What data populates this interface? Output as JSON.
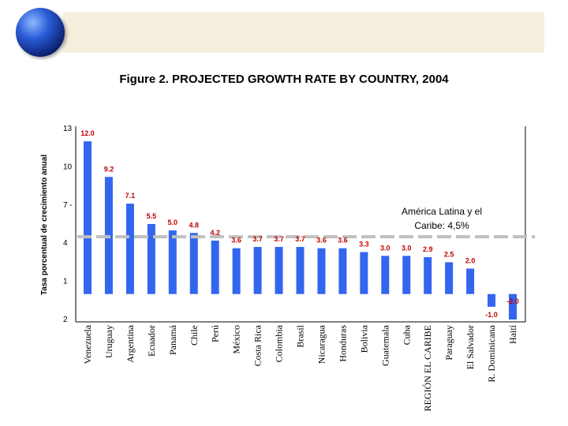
{
  "header": {
    "title": "Figure 2.  PROJECTED GROWTH RATE  BY COUNTRY, 2004",
    "globe_icon": "globe-icon"
  },
  "chart_data": {
    "type": "bar",
    "title": "Figure 2.  PROJECTED GROWTH RATE  BY COUNTRY, 2004",
    "xlabel": "",
    "ylabel": "Tasa porcentual de crecimiento anual",
    "ylim": [
      -2.5,
      13
    ],
    "y_ticks": [
      {
        "value": 13,
        "label": "13"
      },
      {
        "value": 10,
        "label": "10"
      },
      {
        "value": 7,
        "label": "7 -"
      },
      {
        "value": 4,
        "label": "4"
      },
      {
        "value": 1,
        "label": "1"
      },
      {
        "value": -2,
        "label": "2"
      }
    ],
    "bar_color": "#3366ee",
    "label_color": "#c00000",
    "reference_color": "#c0c0c0",
    "categories": [
      "Venezuela",
      "Uruguay",
      "Argentina",
      "Ecuador",
      "Panamá",
      "Chile",
      "Perú",
      "México",
      "Costa Rica",
      "Colombia",
      "Brasil",
      "Nicaragua",
      "Honduras",
      "Bolivia",
      "Guatemala",
      "Cuba",
      "REGIÓN EL CARIBE",
      "Paraguay",
      "El Salvador",
      "R. Dominicana",
      "Haití"
    ],
    "values": [
      12.0,
      9.2,
      7.1,
      5.5,
      5.0,
      4.8,
      4.2,
      3.6,
      3.7,
      3.7,
      3.7,
      3.6,
      3.6,
      3.3,
      3.0,
      3.0,
      2.9,
      2.5,
      2.0,
      -1.0,
      -2.0
    ],
    "value_labels": [
      "12.0",
      "9.2",
      "7.1",
      "5.5",
      "5.0",
      "4.8",
      "4.2",
      "3.6",
      "3.7",
      "3.7",
      "3.7",
      "3.6",
      "3.6",
      "3.3",
      "3.0",
      "3.0",
      "2.9",
      "2.5",
      "2.0",
      "-1.0",
      "-2.0"
    ],
    "reference_line": {
      "value": 4.5,
      "label_line1": "América Latina y el",
      "label_line2": "Caribe: 4,5%"
    }
  }
}
